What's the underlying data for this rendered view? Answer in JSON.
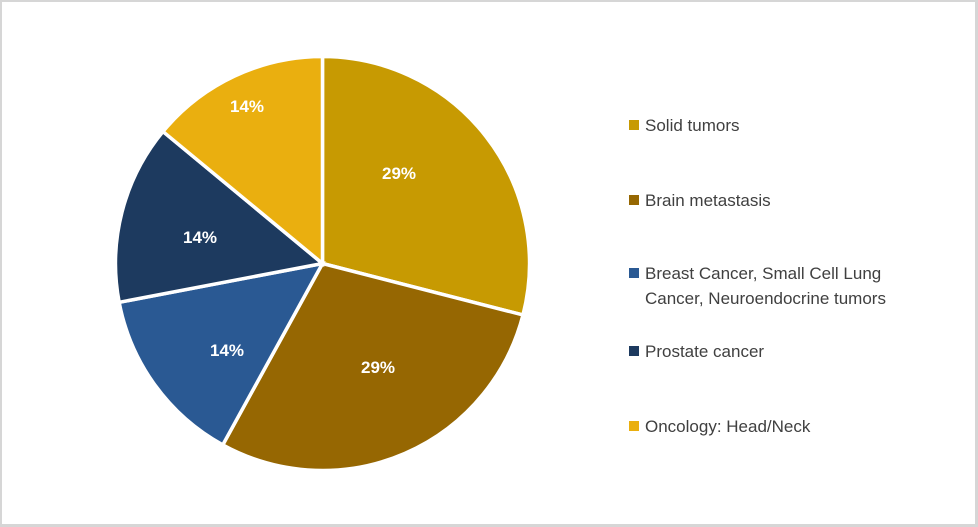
{
  "canvas": {
    "background": "#FFFFFF",
    "border_color": "#D6D6D6"
  },
  "chart_data": {
    "type": "pie",
    "title": "",
    "legend_position": "right",
    "data_label_color": "#FFFFFF",
    "legend_text_color": "#404040",
    "slices": [
      {
        "name": "Solid tumors",
        "percent": 29,
        "label": "29%",
        "color": "#C79A02"
      },
      {
        "name": "Brain metastasis",
        "percent": 29,
        "label": "29%",
        "color": "#966702"
      },
      {
        "name": "Breast Cancer, Small Cell Lung Cancer, Neuroendocrine tumors",
        "percent": 14,
        "label": "14%",
        "color": "#2A5993"
      },
      {
        "name": "Prostate cancer",
        "percent": 14,
        "label": "14%",
        "color": "#1D3A5F"
      },
      {
        "name": "Oncology: Head/Neck",
        "percent": 14,
        "label": "14%",
        "color": "#EAAF0F"
      }
    ]
  }
}
